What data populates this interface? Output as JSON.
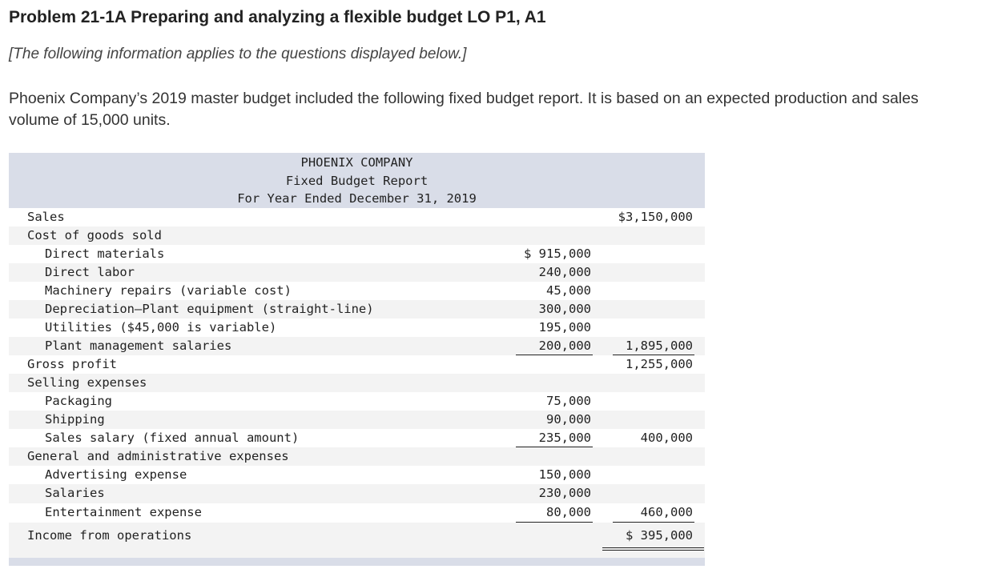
{
  "problem": {
    "title": "Problem 21-1A Preparing and analyzing a flexible budget LO P1, A1",
    "subtitle": "[The following information applies to the questions displayed below.]",
    "intro": "Phoenix Company’s 2019 master budget included the following fixed budget report. It is based on an expected production and sales volume of 15,000 units."
  },
  "report": {
    "company": "PHOENIX COMPANY",
    "name": "Fixed Budget Report",
    "period": "For Year Ended December 31, 2019",
    "rows": [
      {
        "label": "Sales",
        "col1": "",
        "col2": "$3,150,000"
      },
      {
        "label": "Cost of goods sold",
        "col1": "",
        "col2": ""
      },
      {
        "label": "Direct materials",
        "col1": "$ 915,000",
        "col2": ""
      },
      {
        "label": "Direct labor",
        "col1": "240,000",
        "col2": ""
      },
      {
        "label": "Machinery repairs (variable cost)",
        "col1": "45,000",
        "col2": ""
      },
      {
        "label": "Depreciation—Plant equipment (straight-line)",
        "col1": "300,000",
        "col2": ""
      },
      {
        "label": "Utilities ($45,000 is variable)",
        "col1": "195,000",
        "col2": ""
      },
      {
        "label": "Plant management salaries",
        "col1": "200,000",
        "col2": "1,895,000"
      },
      {
        "label": "Gross profit",
        "col1": "",
        "col2": "1,255,000"
      },
      {
        "label": "Selling expenses",
        "col1": "",
        "col2": ""
      },
      {
        "label": "Packaging",
        "col1": "75,000",
        "col2": ""
      },
      {
        "label": "Shipping",
        "col1": "90,000",
        "col2": ""
      },
      {
        "label": "Sales salary (fixed annual amount)",
        "col1": "235,000",
        "col2": "400,000"
      },
      {
        "label": "General and administrative expenses",
        "col1": "",
        "col2": ""
      },
      {
        "label": "Advertising expense",
        "col1": "150,000",
        "col2": ""
      },
      {
        "label": "Salaries",
        "col1": "230,000",
        "col2": ""
      },
      {
        "label": "Entertainment expense",
        "col1": "80,000",
        "col2": "460,000"
      },
      {
        "label": "Income from operations",
        "col1": "",
        "col2": "$  395,000"
      }
    ]
  }
}
